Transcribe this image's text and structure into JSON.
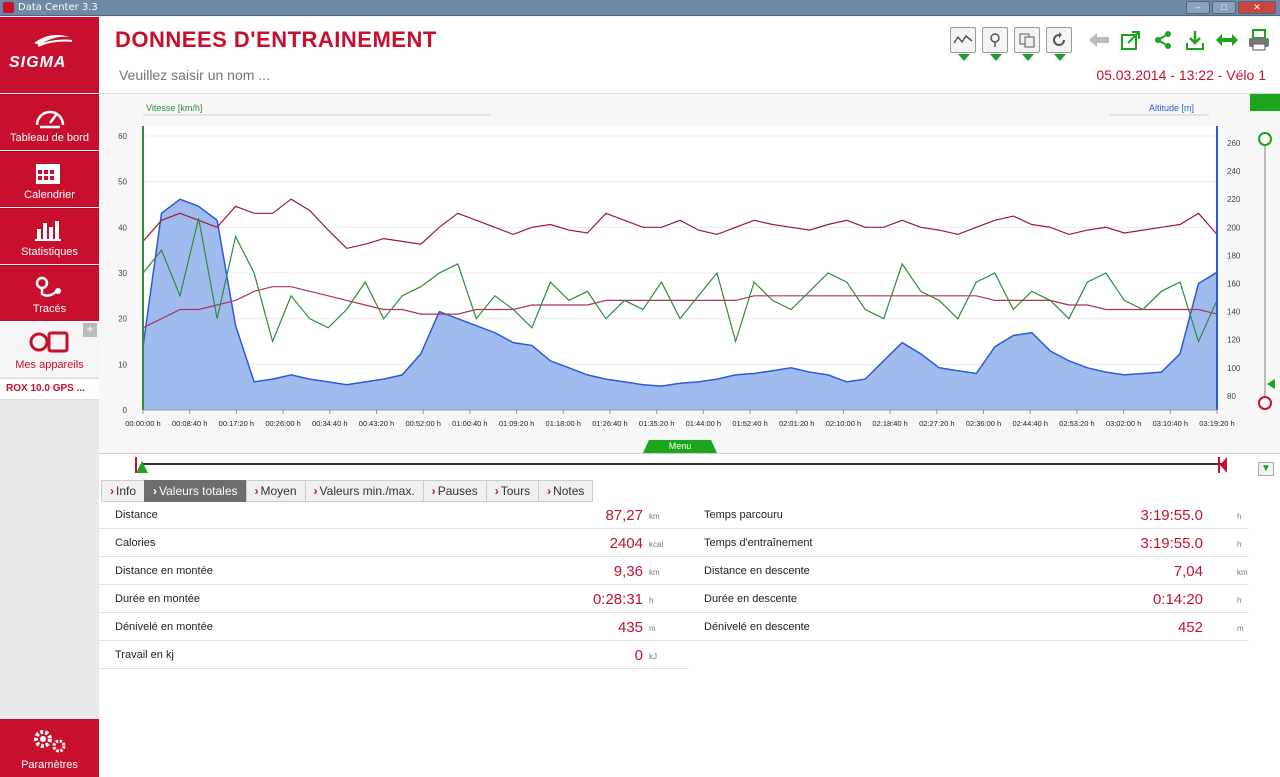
{
  "window": {
    "title": "Data Center 3.3"
  },
  "sidebar": {
    "brand": "SIGMA",
    "items": [
      {
        "label": "Tableau de bord",
        "icon": "speedometer-icon"
      },
      {
        "label": "Calendrier",
        "icon": "calendar-icon"
      },
      {
        "label": "Statistiques",
        "icon": "bar-chart-icon"
      },
      {
        "label": "Tracés",
        "icon": "route-icon"
      }
    ],
    "devices_label": "Mes appareils",
    "device_name": "ROX 10.0 GPS ...",
    "settings_label": "Paramètres"
  },
  "header": {
    "title": "DONNEES D'ENTRAINEMENT",
    "name_placeholder": "Veuillez saisir un nom ...",
    "session": "05.03.2014 - 13:22 - Vélo 1"
  },
  "chart_data": {
    "type": "line",
    "left_axis_label": "Vitesse [km/h]",
    "right_axis_label": "Altitude [m]",
    "left_ticks": [
      "60",
      "50",
      "40",
      "30",
      "20",
      "10",
      "0"
    ],
    "right_ticks": [
      "260",
      "240",
      "220",
      "200",
      "180",
      "160",
      "140",
      "120",
      "100",
      "80"
    ],
    "x_ticks": [
      "00:00:00 h",
      "00:08:40 h",
      "00:17:20 h",
      "00:26:00 h",
      "00:34:40 h",
      "00:43:20 h",
      "00:52:00 h",
      "01:00:40 h",
      "01:09:20 h",
      "01:18:00 h",
      "01:26:40 h",
      "01:35:20 h",
      "01:44:00 h",
      "01:52:40 h",
      "02:01:20 h",
      "02:10:00 h",
      "02:18:40 h",
      "02:27:20 h",
      "02:36:00 h",
      "02:44:40 h",
      "02:53:20 h",
      "03:02:00 h",
      "03:10:40 h",
      "03:19:20 h"
    ],
    "colors": {
      "speed": "#2e8b3a",
      "altitude_fill": "#8fb0ec",
      "altitude_line": "#2a5bd7",
      "heart_rate": "#9a1b2f",
      "cadence": "#b03060"
    },
    "altitude_m": [
      115,
      210,
      220,
      215,
      205,
      130,
      90,
      92,
      95,
      92,
      90,
      88,
      90,
      92,
      95,
      110,
      140,
      135,
      130,
      125,
      118,
      116,
      105,
      100,
      95,
      92,
      90,
      88,
      87,
      89,
      90,
      92,
      95,
      96,
      98,
      100,
      97,
      95,
      90,
      92,
      105,
      118,
      110,
      100,
      98,
      96,
      115,
      123,
      125,
      112,
      105,
      100,
      97,
      95,
      96,
      97,
      110,
      160,
      168
    ],
    "heart_rate_bpm": [
      190,
      205,
      210,
      205,
      200,
      215,
      210,
      210,
      220,
      212,
      198,
      185,
      188,
      192,
      190,
      188,
      200,
      210,
      205,
      200,
      195,
      200,
      202,
      198,
      196,
      210,
      205,
      200,
      200,
      205,
      198,
      195,
      200,
      205,
      202,
      200,
      198,
      202,
      205,
      200,
      200,
      205,
      200,
      198,
      195,
      200,
      205,
      208,
      202,
      200,
      195,
      198,
      200,
      196,
      198,
      200,
      202,
      210,
      195
    ],
    "speed_kmh": [
      30,
      35,
      25,
      42,
      20,
      38,
      30,
      15,
      25,
      20,
      18,
      22,
      28,
      20,
      25,
      27,
      30,
      32,
      20,
      25,
      22,
      18,
      28,
      24,
      26,
      20,
      24,
      22,
      28,
      20,
      25,
      30,
      15,
      28,
      24,
      22,
      26,
      30,
      28,
      22,
      20,
      32,
      26,
      24,
      20,
      28,
      30,
      22,
      26,
      24,
      20,
      28,
      30,
      24,
      22,
      26,
      28,
      15,
      24
    ],
    "cadence_rpm": [
      18,
      20,
      22,
      22,
      23,
      24,
      26,
      27,
      27,
      26,
      25,
      24,
      23,
      22,
      22,
      21,
      21,
      21,
      22,
      22,
      22,
      23,
      23,
      23,
      23,
      24,
      24,
      24,
      24,
      24,
      24,
      24,
      24,
      25,
      25,
      25,
      25,
      25,
      25,
      25,
      25,
      25,
      25,
      25,
      25,
      25,
      24,
      24,
      24,
      24,
      23,
      23,
      22,
      22,
      22,
      22,
      22,
      22,
      21
    ],
    "menu_label": "Menu"
  },
  "tabs": [
    {
      "label": "Info"
    },
    {
      "label": "Valeurs totales",
      "active": true
    },
    {
      "label": "Moyen"
    },
    {
      "label": "Valeurs min./max."
    },
    {
      "label": "Pauses"
    },
    {
      "label": "Tours"
    },
    {
      "label": "Notes"
    }
  ],
  "stats_left": [
    {
      "label": "Distance",
      "value": "87,27",
      "unit": "km"
    },
    {
      "label": "Calories",
      "value": "2404",
      "unit": "kcal"
    },
    {
      "label": "Distance en montée",
      "value": "9,36",
      "unit": "km"
    },
    {
      "label": "Durée en montée",
      "value": "0:28:31",
      "unit": "h"
    },
    {
      "label": "Dénivelé en montée",
      "value": "435",
      "unit": "m"
    },
    {
      "label": "Travail en kj",
      "value": "0",
      "unit": "kJ"
    }
  ],
  "stats_right": [
    {
      "label": "Temps parcouru",
      "value": "3:19:55.0",
      "unit": "h"
    },
    {
      "label": "Temps d'entraînement",
      "value": "3:19:55.0",
      "unit": "h"
    },
    {
      "label": "Distance en descente",
      "value": "7,04",
      "unit": "km"
    },
    {
      "label": "Durée en descente",
      "value": "0:14:20",
      "unit": "h"
    },
    {
      "label": "Dénivelé en descente",
      "value": "452",
      "unit": "m"
    }
  ]
}
